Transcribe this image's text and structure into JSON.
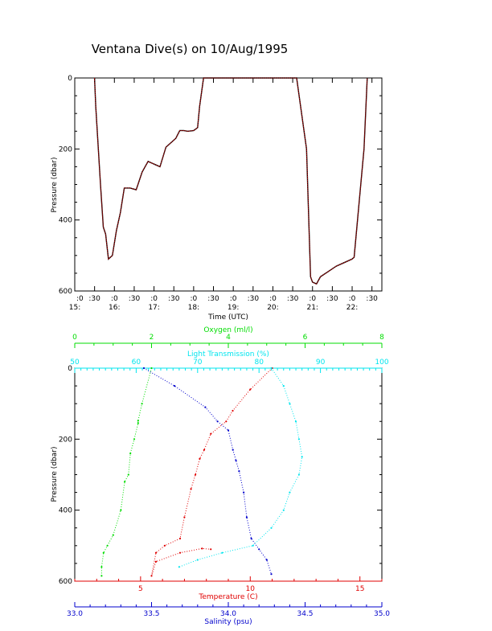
{
  "title": "Ventana Dive(s) on 10/Aug/1995",
  "colors": {
    "axis": "#000000",
    "temperature": "#e00000",
    "salinity": "#0000cc",
    "oxygen": "#00dd00",
    "transmission": "#00e5ee",
    "depth_trace": "#e00000",
    "depth_trace_shadow": "#000000"
  },
  "chart_data": [
    {
      "type": "line",
      "ylabel": "Pressure (dbar)",
      "xlabel": "Time (UTC)",
      "ylim": [
        600,
        0
      ],
      "yticks": [
        "0",
        "200",
        "400",
        "600"
      ],
      "xticks_top": [
        ":0",
        ":30",
        ":0",
        ":30",
        ":0",
        ":30",
        ":0",
        ":30",
        ":0",
        ":30",
        ":0",
        ":30",
        ":0",
        ":30",
        ":0",
        ":30"
      ],
      "xticks_bottom": [
        "15:",
        "16:",
        "17:",
        "18:",
        "19:",
        "20:",
        "21:",
        "22:"
      ],
      "xlim_hours": [
        15.0,
        22.75
      ],
      "series": [
        {
          "x_hours": [
            15.5,
            15.53,
            15.65,
            15.72,
            15.78,
            15.85,
            15.95,
            16.05,
            16.15,
            16.25,
            16.4,
            16.55,
            16.7,
            16.85,
            16.95,
            17.05,
            17.15,
            17.3,
            17.45,
            17.55,
            17.65,
            17.75,
            17.85,
            18.0,
            18.1,
            18.15,
            18.25,
            18.3,
            19.0,
            20.0,
            20.6,
            20.85,
            20.95,
            21.0,
            21.1,
            21.2,
            21.4,
            21.6,
            21.8,
            22.0,
            22.05,
            22.3,
            22.38
          ],
          "y": [
            0,
            80,
            300,
            420,
            440,
            510,
            500,
            430,
            380,
            310,
            310,
            315,
            265,
            235,
            240,
            245,
            250,
            195,
            180,
            170,
            148,
            148,
            150,
            148,
            140,
            80,
            0,
            0,
            0,
            0,
            0,
            200,
            560,
            575,
            580,
            560,
            545,
            530,
            520,
            510,
            505,
            200,
            0
          ]
        }
      ]
    },
    {
      "type": "scatter",
      "ylabel": "Pressure (dbar)",
      "ylim": [
        600,
        0
      ],
      "yticks": [
        "0",
        "200",
        "400",
        "600"
      ],
      "axes": {
        "oxygen": {
          "label": "Oxygen (ml/l)",
          "range": [
            0,
            8
          ],
          "ticks": [
            "0",
            "2",
            "4",
            "6",
            "8"
          ]
        },
        "transmission": {
          "label": "Light Transmission (%)",
          "range": [
            50,
            100
          ],
          "ticks": [
            "50",
            "60",
            "70",
            "80",
            "90",
            "100"
          ]
        },
        "temperature": {
          "label": "Temperature (C)",
          "range": [
            2,
            16
          ],
          "ticks": [
            "5",
            "10",
            "15"
          ]
        },
        "salinity": {
          "label": "Salinity (psu)",
          "range": [
            33.0,
            35.0
          ],
          "ticks": [
            "33.0",
            "33.5",
            "34.0",
            "34.5",
            "35.0"
          ]
        }
      },
      "series": [
        {
          "name": "Temperature",
          "x": [
            11.0,
            10.0,
            9.2,
            8.9,
            8.2,
            7.9,
            7.7,
            7.5,
            7.3,
            7.0,
            6.8,
            6.1,
            5.7,
            5.5,
            5.7,
            6.8,
            7.8,
            8.2
          ],
          "y": [
            0,
            60,
            120,
            150,
            185,
            230,
            255,
            300,
            340,
            420,
            480,
            500,
            520,
            585,
            545,
            520,
            508,
            510
          ]
        },
        {
          "name": "Salinity",
          "x": [
            33.45,
            33.65,
            33.85,
            33.93,
            34.0,
            34.03,
            34.05,
            34.07,
            34.1,
            34.12,
            34.15,
            34.2,
            34.25,
            34.28
          ],
          "y": [
            0,
            50,
            110,
            150,
            175,
            230,
            260,
            290,
            350,
            420,
            480,
            510,
            540,
            580
          ]
        },
        {
          "name": "Oxygen",
          "x": [
            2.0,
            1.75,
            1.65,
            1.65,
            1.55,
            1.45,
            1.4,
            1.3,
            1.2,
            1.0,
            0.85,
            0.75,
            0.7,
            0.7
          ],
          "y": [
            0,
            100,
            148,
            155,
            200,
            240,
            300,
            320,
            400,
            470,
            500,
            520,
            560,
            585
          ]
        },
        {
          "name": "Light Transmission",
          "x": [
            82.0,
            84.0,
            85.0,
            86.0,
            86.5,
            87.0,
            86.5,
            85.0,
            84.0,
            82.0,
            79.0,
            74.0,
            70.0,
            67.0
          ],
          "y": [
            0,
            50,
            100,
            150,
            200,
            250,
            300,
            350,
            400,
            450,
            500,
            520,
            540,
            560
          ]
        }
      ]
    }
  ]
}
